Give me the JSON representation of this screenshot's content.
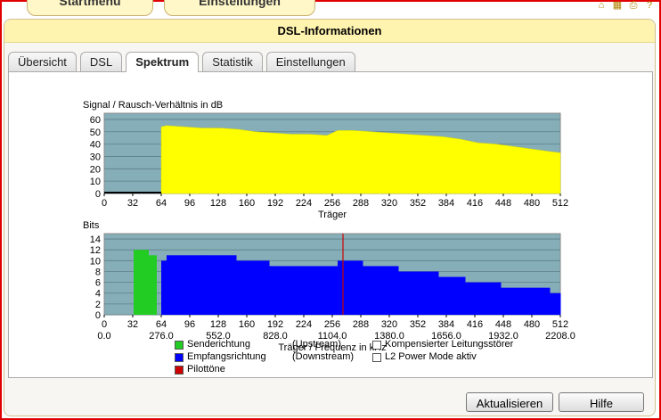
{
  "top_tabs": [
    "Startmenü",
    "Einstellungen"
  ],
  "panel_title": "DSL-Informationen",
  "tabs": [
    {
      "label": "Übersicht",
      "active": false
    },
    {
      "label": "DSL",
      "active": false
    },
    {
      "label": "Spektrum",
      "active": true
    },
    {
      "label": "Statistik",
      "active": false
    },
    {
      "label": "Einstellungen",
      "active": false
    }
  ],
  "colors": {
    "plot_background": "#86aeb8",
    "snr_fill": "#ffff00",
    "upstream": "#22cc22",
    "downstream": "#0000ff",
    "pilot": "#cc0000"
  },
  "chart_data": [
    {
      "type": "area",
      "ylabel": "Signal / Rausch-Verhältnis in dB",
      "xlabel": "Träger",
      "xlim": [
        0,
        512
      ],
      "ylim": [
        0,
        65
      ],
      "yticks": [
        0,
        10,
        20,
        30,
        40,
        50,
        60
      ],
      "xticks": [
        0,
        32,
        64,
        96,
        128,
        160,
        192,
        224,
        256,
        288,
        320,
        352,
        384,
        416,
        448,
        480,
        512
      ],
      "grid": true,
      "series": [
        {
          "x": [
            64,
            70,
            90,
            110,
            130,
            150,
            170,
            190,
            210,
            230,
            250,
            256,
            262,
            280,
            300,
            320,
            340,
            360,
            380,
            400,
            420,
            440,
            460,
            480,
            500,
            512
          ],
          "values": [
            54,
            55,
            54,
            53,
            53,
            52,
            50,
            49,
            48,
            48,
            47,
            49,
            51,
            51,
            50,
            49,
            48,
            47,
            46,
            44,
            41,
            40,
            38,
            36,
            34,
            33
          ]
        }
      ]
    },
    {
      "type": "bar",
      "ylabel": "Bits",
      "xlabel": "Träger / Frequenz in kHz",
      "xlim": [
        0,
        512
      ],
      "ylim": [
        0,
        15
      ],
      "yticks": [
        0,
        2,
        4,
        6,
        8,
        10,
        12,
        14
      ],
      "xticks": [
        0,
        32,
        64,
        96,
        128,
        160,
        192,
        224,
        256,
        288,
        320,
        352,
        384,
        416,
        448,
        480,
        512
      ],
      "freq_ticks": [
        "0.0",
        "276.0",
        "552.0",
        "828.0",
        "1104.0",
        "1380.0",
        "1656.0",
        "1932.0",
        "2208.0"
      ],
      "grid": true,
      "series": [
        {
          "name": "Senderichtung",
          "x_range": [
            33,
            59
          ],
          "segments": [
            [
              33,
              40,
              12
            ],
            [
              40,
              50,
              12
            ],
            [
              50,
              57,
              11
            ],
            [
              57,
              59,
              11
            ]
          ]
        },
        {
          "name": "Empfangsrichtung",
          "x_range": [
            64,
            512
          ],
          "segments": [
            [
              64,
              70,
              10
            ],
            [
              70,
              110,
              11
            ],
            [
              110,
              148,
              11
            ],
            [
              148,
              185,
              10
            ],
            [
              185,
              220,
              9
            ],
            [
              220,
              262,
              9
            ],
            [
              262,
              290,
              10
            ],
            [
              290,
              330,
              9
            ],
            [
              330,
              375,
              8
            ],
            [
              375,
              405,
              7
            ],
            [
              405,
              445,
              6
            ],
            [
              445,
              470,
              5
            ],
            [
              470,
              500,
              5
            ],
            [
              500,
              512,
              4
            ]
          ]
        },
        {
          "name": "Pilottöne",
          "x": [
            268
          ],
          "values": [
            15
          ]
        }
      ]
    }
  ],
  "legend": [
    {
      "label": "Senderichtung",
      "direction": "(Upstream)",
      "color": "#22cc22"
    },
    {
      "label": "Empfangsrichtung",
      "direction": "(Downstream)",
      "color": "#0000ff"
    },
    {
      "label": "Pilottöne",
      "direction": "",
      "color": "#cc0000"
    },
    {
      "label": "Kompensierter Leitungsstörer",
      "color": "#ffffff"
    },
    {
      "label": "L2 Power Mode aktiv",
      "color": "#ffffff"
    }
  ],
  "buttons": {
    "refresh": "Aktualisieren",
    "help": "Hilfe"
  }
}
